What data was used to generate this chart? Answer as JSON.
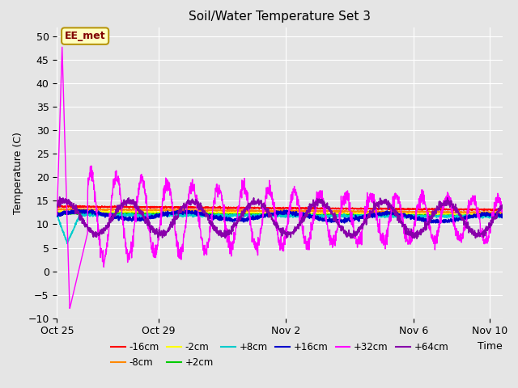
{
  "title": "Soil/Water Temperature Set 3",
  "xlabel": "Time",
  "ylabel": "Temperature (C)",
  "ylim": [
    -10,
    52
  ],
  "yticks": [
    -10,
    -5,
    0,
    5,
    10,
    15,
    20,
    25,
    30,
    35,
    40,
    45,
    50
  ],
  "bg_color": "#e5e5e5",
  "annotation_text": "EE_met",
  "annotation_bg": "#ffffc0",
  "annotation_border": "#b8960c",
  "annotation_text_color": "#800000",
  "series": [
    {
      "label": "-16cm",
      "color": "#ff0000",
      "lw": 1.2
    },
    {
      "label": "-8cm",
      "color": "#ff8800",
      "lw": 1.2
    },
    {
      "label": "-2cm",
      "color": "#ffff00",
      "lw": 1.2
    },
    {
      "label": "+2cm",
      "color": "#00cc00",
      "lw": 1.2
    },
    {
      "label": "+8cm",
      "color": "#00cccc",
      "lw": 1.2
    },
    {
      "label": "+16cm",
      "color": "#0000cc",
      "lw": 1.5
    },
    {
      "label": "+32cm",
      "color": "#ff00ff",
      "lw": 1.0
    },
    {
      "label": "+64cm",
      "color": "#8800aa",
      "lw": 1.2
    }
  ],
  "xtick_labels": [
    "Oct 25",
    "Oct 29",
    "Nov 2",
    "Nov 6",
    "Nov 10"
  ],
  "xtick_positions": [
    0,
    4,
    9,
    14,
    17
  ],
  "n_days": 17.5,
  "n_points": 2000
}
